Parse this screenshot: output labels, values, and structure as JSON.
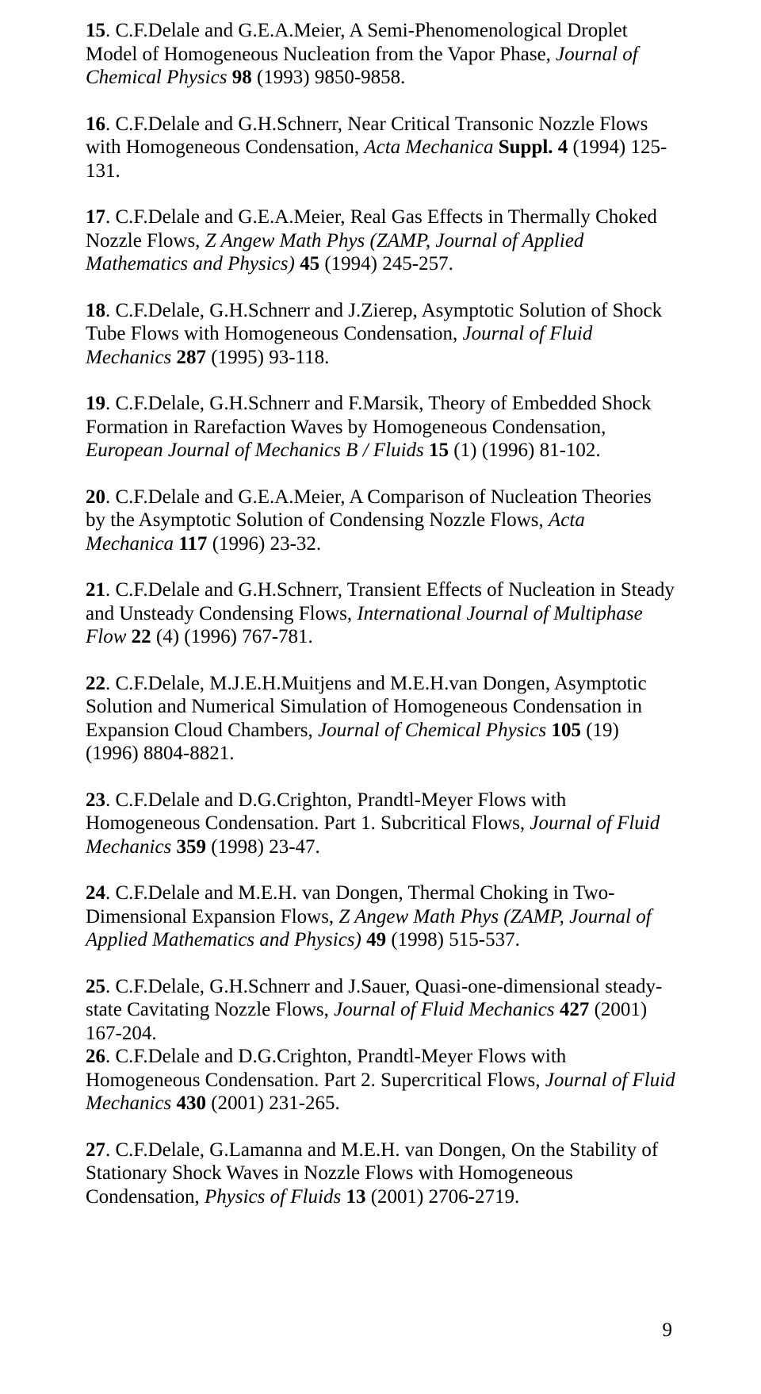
{
  "pagenum": "9",
  "refs": [
    {
      "num": "15",
      "pre": ". C.F.Delale and G.E.A.Meier, A Semi-Phenomenological Droplet Model of Homogeneous Nucleation from the Vapor Phase, ",
      "ital": "Journal of Chemical Physics",
      "post_a": " ",
      "vol": "98",
      "post_b": " (1993) 9850-9858."
    },
    {
      "num": "16",
      "pre": ". C.F.Delale and G.H.Schnerr, Near Critical Transonic Nozzle Flows with Homogeneous Condensation, ",
      "ital": "Acta Mechanica",
      "post_a": " ",
      "vol": "Suppl. 4",
      "post_b": " (1994) 125-131."
    },
    {
      "num": "17",
      "pre": ". C.F.Delale and G.E.A.Meier, Real Gas Effects  in Thermally Choked Nozzle Flows, ",
      "ital": "Z Angew Math Phys (ZAMP, Journal of Applied Mathematics and Physics)",
      "post_a": " ",
      "vol": "45",
      "post_b": " (1994) 245-257."
    },
    {
      "num": "18",
      "pre": ". C.F.Delale, G.H.Schnerr and J.Zierep, Asymptotic Solution of Shock Tube Flows with Homogeneous Condensation, ",
      "ital": "Journal of Fluid Mechanics",
      "post_a": " ",
      "vol": "287",
      "post_b": " (1995) 93-118."
    },
    {
      "num": "19",
      "pre": ". C.F.Delale, G.H.Schnerr and F.Marsik, Theory of Embedded Shock Formation in Rarefaction Waves by Homogeneous Condensation, ",
      "ital": "European Journal of Mechanics B / Fluids",
      "post_a": " ",
      "vol": "15",
      "post_b": " (1) (1996) 81-102."
    },
    {
      "num": "20",
      "pre": ". C.F.Delale and G.E.A.Meier, A Comparison of Nucleation Theories by the Asymptotic Solution of Condensing Nozzle Flows, ",
      "ital": "Acta Mechanica",
      "post_a": " ",
      "vol": "117",
      "post_b": " (1996) 23-32."
    },
    {
      "num": "21",
      "pre": ". C.F.Delale and G.H.Schnerr, Transient Effects of Nucleation in Steady and Unsteady Condensing Flows, ",
      "ital": "International Journal of Multiphase Flow",
      "post_a": " ",
      "vol": "22",
      "post_b": " (4) (1996) 767-781."
    },
    {
      "num": "22",
      "pre": ". C.F.Delale, M.J.E.H.Muitjens and M.E.H.van Dongen, Asymptotic Solution and Numerical Simulation of Homogeneous Condensation in Expansion Cloud Chambers, ",
      "ital": "Journal of Chemical Physics",
      "post_a": " ",
      "vol": "105",
      "post_b": " (19) (1996) 8804-8821."
    },
    {
      "num": "23",
      "pre": ". C.F.Delale and D.G.Crighton, Prandtl-Meyer Flows with Homogeneous Condensation. Part 1. Subcritical Flows, ",
      "ital": "Journal of Fluid  Mechanics",
      "post_a": " ",
      "vol": "359",
      "post_b": " (1998) 23-47."
    },
    {
      "num": "24",
      "pre": ". C.F.Delale and M.E.H. van Dongen, Thermal Choking in Two-Dimensional Expansion Flows, ",
      "ital": "Z Angew Math Phys (ZAMP, Journal of Applied Mathematics and Physics)",
      "post_a": " ",
      "vol": "49",
      "post_b": " (1998) 515-537."
    },
    {
      "num": "25",
      "pre": ". C.F.Delale, G.H.Schnerr and J.Sauer, Quasi-one-dimensional steady-state Cavitating Nozzle Flows, ",
      "ital": "Journal of Fluid Mechanics",
      "post_a": " ",
      "vol": "427",
      "post_b": " (2001) 167-204.",
      "two": {
        "num": "26",
        "pre": ". C.F.Delale and D.G.Crighton, Prandtl-Meyer Flows with Homogeneous Condensation. Part 2. Supercritical Flows, ",
        "ital": "Journal of Fluid Mechanics",
        "post_a": " ",
        "vol": "430",
        "post_b": " (2001) 231-265."
      }
    },
    {
      "num": "27",
      "pre": ". C.F.Delale, G.Lamanna and M.E.H. van Dongen, On the Stability of Stationary Shock Waves in Nozzle Flows with Homogeneous Condensation, ",
      "ital": "Physics of Fluids",
      "post_a": " ",
      "vol": "13",
      "post_b": " (2001) 2706-2719."
    }
  ]
}
